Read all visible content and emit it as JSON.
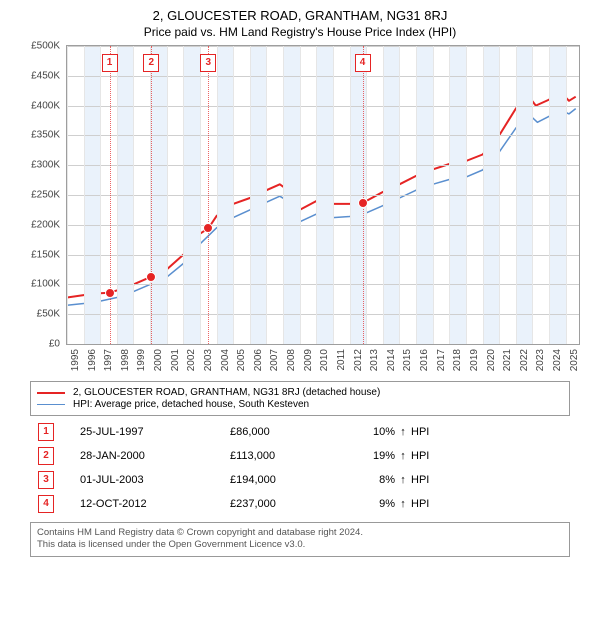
{
  "title_line1": "2, GLOUCESTER ROAD, GRANTHAM, NG31 8RJ",
  "title_line2": "Price paid vs. HM Land Registry's House Price Index (HPI)",
  "chart": {
    "ylabel_prefix": "£",
    "ylim": [
      0,
      500
    ],
    "ytick_step": 50,
    "yticks": [
      "£0",
      "£50K",
      "£100K",
      "£150K",
      "£200K",
      "£250K",
      "£300K",
      "£350K",
      "£400K",
      "£450K",
      "£500K"
    ],
    "xlim": [
      1995,
      2025.8
    ],
    "xticks": [
      1995,
      1996,
      1997,
      1998,
      1999,
      2000,
      2001,
      2002,
      2003,
      2004,
      2005,
      2006,
      2007,
      2008,
      2009,
      2010,
      2011,
      2012,
      2013,
      2014,
      2015,
      2016,
      2017,
      2018,
      2019,
      2020,
      2021,
      2022,
      2023,
      2024,
      2025
    ],
    "alt_band_color": "#eaf2fb",
    "grid_color": "#cfcfcf",
    "axis_color": "#9e9e9e",
    "series": [
      {
        "name": "price_paid",
        "color": "#e52424",
        "width": 2,
        "points": [
          [
            1995.0,
            78
          ],
          [
            1996.0,
            82
          ],
          [
            1997.0,
            85
          ],
          [
            1997.56,
            86
          ],
          [
            1998.0,
            90
          ],
          [
            1999.0,
            100
          ],
          [
            2000.0,
            112
          ],
          [
            2000.07,
            113
          ],
          [
            2001.0,
            125
          ],
          [
            2002.0,
            150
          ],
          [
            2003.0,
            185
          ],
          [
            2003.5,
            194
          ],
          [
            2004.0,
            215
          ],
          [
            2005.0,
            235
          ],
          [
            2006.0,
            245
          ],
          [
            2007.0,
            258
          ],
          [
            2007.8,
            268
          ],
          [
            2008.3,
            258
          ],
          [
            2009.0,
            225
          ],
          [
            2010.0,
            240
          ],
          [
            2011.0,
            235
          ],
          [
            2012.0,
            235
          ],
          [
            2012.78,
            237
          ],
          [
            2013.0,
            240
          ],
          [
            2014.0,
            255
          ],
          [
            2015.0,
            268
          ],
          [
            2016.0,
            282
          ],
          [
            2017.0,
            293
          ],
          [
            2018.0,
            302
          ],
          [
            2019.0,
            307
          ],
          [
            2020.0,
            318
          ],
          [
            2021.0,
            350
          ],
          [
            2022.0,
            395
          ],
          [
            2022.7,
            418
          ],
          [
            2023.2,
            400
          ],
          [
            2024.0,
            410
          ],
          [
            2024.6,
            425
          ],
          [
            2025.2,
            408
          ],
          [
            2025.6,
            415
          ]
        ]
      },
      {
        "name": "hpi",
        "color": "#5a8fcf",
        "width": 1.5,
        "points": [
          [
            1995.0,
            65
          ],
          [
            1996.0,
            68
          ],
          [
            1997.0,
            72
          ],
          [
            1998.0,
            78
          ],
          [
            1999.0,
            88
          ],
          [
            2000.0,
            100
          ],
          [
            2001.0,
            112
          ],
          [
            2002.0,
            135
          ],
          [
            2003.0,
            168
          ],
          [
            2004.0,
            195
          ],
          [
            2005.0,
            212
          ],
          [
            2006.0,
            225
          ],
          [
            2007.0,
            238
          ],
          [
            2007.8,
            248
          ],
          [
            2008.4,
            238
          ],
          [
            2009.0,
            205
          ],
          [
            2010.0,
            218
          ],
          [
            2011.0,
            212
          ],
          [
            2012.0,
            214
          ],
          [
            2013.0,
            220
          ],
          [
            2014.0,
            232
          ],
          [
            2015.0,
            245
          ],
          [
            2016.0,
            258
          ],
          [
            2017.0,
            268
          ],
          [
            2018.0,
            276
          ],
          [
            2019.0,
            280
          ],
          [
            2020.0,
            292
          ],
          [
            2021.0,
            322
          ],
          [
            2022.0,
            362
          ],
          [
            2022.8,
            385
          ],
          [
            2023.3,
            372
          ],
          [
            2024.0,
            382
          ],
          [
            2024.6,
            394
          ],
          [
            2025.2,
            386
          ],
          [
            2025.6,
            395
          ]
        ]
      }
    ],
    "transactions": [
      {
        "n": "1",
        "year": 1997.56,
        "price": 86
      },
      {
        "n": "2",
        "year": 2000.07,
        "price": 113
      },
      {
        "n": "3",
        "year": 2003.5,
        "price": 194
      },
      {
        "n": "4",
        "year": 2012.78,
        "price": 237
      }
    ]
  },
  "legend": {
    "series1": "2, GLOUCESTER ROAD, GRANTHAM, NG31 8RJ (detached house)",
    "series2": "HPI: Average price, detached house, South Kesteven"
  },
  "txn_rows": [
    {
      "n": "1",
      "date": "25-JUL-1997",
      "price": "£86,000",
      "pct": "10%",
      "arrow": "↑",
      "tag": "HPI"
    },
    {
      "n": "2",
      "date": "28-JAN-2000",
      "price": "£113,000",
      "pct": "19%",
      "arrow": "↑",
      "tag": "HPI"
    },
    {
      "n": "3",
      "date": "01-JUL-2003",
      "price": "£194,000",
      "pct": "8%",
      "arrow": "↑",
      "tag": "HPI"
    },
    {
      "n": "4",
      "date": "12-OCT-2012",
      "price": "£237,000",
      "pct": "9%",
      "arrow": "↑",
      "tag": "HPI"
    }
  ],
  "attribution": {
    "line1": "Contains HM Land Registry data © Crown copyright and database right 2024.",
    "line2": "This data is licensed under the Open Government Licence v3.0."
  }
}
